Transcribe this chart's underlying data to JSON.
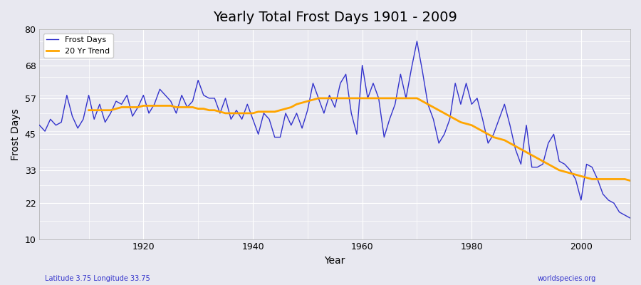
{
  "title": "Yearly Total Frost Days 1901 - 2009",
  "xlabel": "Year",
  "ylabel": "Frost Days",
  "caption_left": "Latitude 3.75 Longitude 33.75",
  "caption_right": "worldspecies.org",
  "ylim": [
    10,
    80
  ],
  "yticks": [
    10,
    22,
    33,
    45,
    57,
    68,
    80
  ],
  "xlim": [
    1901,
    2009
  ],
  "background_color": "#e8e8f0",
  "grid_color": "#ffffff",
  "frost_color": "#3333cc",
  "trend_color": "#ffa500",
  "years": [
    1901,
    1902,
    1903,
    1904,
    1905,
    1906,
    1907,
    1908,
    1909,
    1910,
    1911,
    1912,
    1913,
    1914,
    1915,
    1916,
    1917,
    1918,
    1919,
    1920,
    1921,
    1922,
    1923,
    1924,
    1925,
    1926,
    1927,
    1928,
    1929,
    1930,
    1931,
    1932,
    1933,
    1934,
    1935,
    1936,
    1937,
    1938,
    1939,
    1940,
    1941,
    1942,
    1943,
    1944,
    1945,
    1946,
    1947,
    1948,
    1949,
    1950,
    1951,
    1952,
    1953,
    1954,
    1955,
    1956,
    1957,
    1958,
    1959,
    1960,
    1961,
    1962,
    1963,
    1964,
    1965,
    1966,
    1967,
    1968,
    1969,
    1970,
    1971,
    1972,
    1973,
    1974,
    1975,
    1976,
    1977,
    1978,
    1979,
    1980,
    1981,
    1982,
    1983,
    1984,
    1985,
    1986,
    1987,
    1988,
    1989,
    1990,
    1991,
    1992,
    1993,
    1994,
    1995,
    1996,
    1997,
    1998,
    1999,
    2000,
    2001,
    2002,
    2003,
    2004,
    2005,
    2006,
    2007,
    2008,
    2009
  ],
  "frost_days": [
    48,
    46,
    50,
    48,
    49,
    58,
    51,
    47,
    50,
    58,
    50,
    55,
    49,
    52,
    56,
    55,
    58,
    51,
    54,
    58,
    52,
    55,
    60,
    58,
    56,
    52,
    58,
    54,
    56,
    63,
    58,
    57,
    57,
    52,
    57,
    50,
    53,
    50,
    55,
    50,
    45,
    52,
    50,
    44,
    44,
    52,
    48,
    52,
    47,
    53,
    62,
    57,
    52,
    58,
    54,
    62,
    65,
    52,
    45,
    68,
    57,
    62,
    57,
    44,
    50,
    55,
    65,
    57,
    67,
    76,
    66,
    55,
    50,
    42,
    45,
    50,
    62,
    55,
    62,
    55,
    57,
    50,
    42,
    45,
    50,
    55,
    48,
    40,
    35,
    48,
    34,
    34,
    35,
    42,
    45,
    36,
    35,
    33,
    30,
    23,
    35,
    34,
    30,
    25,
    23,
    22,
    19,
    18,
    17
  ],
  "trend_years": [
    1910,
    1911,
    1912,
    1913,
    1914,
    1915,
    1916,
    1917,
    1918,
    1919,
    1920,
    1921,
    1922,
    1923,
    1924,
    1925,
    1926,
    1927,
    1928,
    1929,
    1930,
    1931,
    1932,
    1933,
    1934,
    1935,
    1936,
    1937,
    1938,
    1939,
    1940,
    1941,
    1942,
    1943,
    1944,
    1945,
    1946,
    1947,
    1948,
    1949,
    1950,
    1951,
    1952,
    1953,
    1954,
    1955,
    1956,
    1957,
    1958,
    1959,
    1960,
    1961,
    1962,
    1963,
    1964,
    1965,
    1966,
    1967,
    1968,
    1969,
    1970,
    1971,
    1972,
    1973,
    1974,
    1975,
    1976,
    1977,
    1978,
    1979,
    1980,
    1981,
    1982,
    1983,
    1984,
    1985,
    1986,
    1987,
    1988,
    1989,
    1990,
    1991,
    1992,
    1993,
    1994,
    1995,
    1996,
    1997,
    1998,
    1999,
    2000,
    2001,
    2002,
    2003,
    2004,
    2005,
    2006,
    2007,
    2008,
    2009
  ],
  "trend_values": [
    53.0,
    53.0,
    53.0,
    53.0,
    53.0,
    53.5,
    54.0,
    54.0,
    54.0,
    54.0,
    54.5,
    54.5,
    54.5,
    54.5,
    54.5,
    54.5,
    54.0,
    54.0,
    54.0,
    54.0,
    53.5,
    53.5,
    53.0,
    53.0,
    52.5,
    52.0,
    52.0,
    52.0,
    52.0,
    52.0,
    52.0,
    52.5,
    52.5,
    52.5,
    52.5,
    53.0,
    53.5,
    54.0,
    55.0,
    55.5,
    56.0,
    56.5,
    57.0,
    57.0,
    57.0,
    57.0,
    57.0,
    57.0,
    57.0,
    57.0,
    57.0,
    57.0,
    57.0,
    57.0,
    57.0,
    57.0,
    57.0,
    57.0,
    57.0,
    57.0,
    57.0,
    56.0,
    55.0,
    54.0,
    53.0,
    52.0,
    51.0,
    50.0,
    49.0,
    48.5,
    48.0,
    47.0,
    46.0,
    45.0,
    44.0,
    43.5,
    43.0,
    42.0,
    41.0,
    40.0,
    39.0,
    38.0,
    37.0,
    36.0,
    35.0,
    34.0,
    33.0,
    32.5,
    32.0,
    31.5,
    31.0,
    30.5,
    30.0,
    30.0,
    30.0,
    30.0,
    30.0,
    30.0,
    30.0,
    29.5
  ]
}
